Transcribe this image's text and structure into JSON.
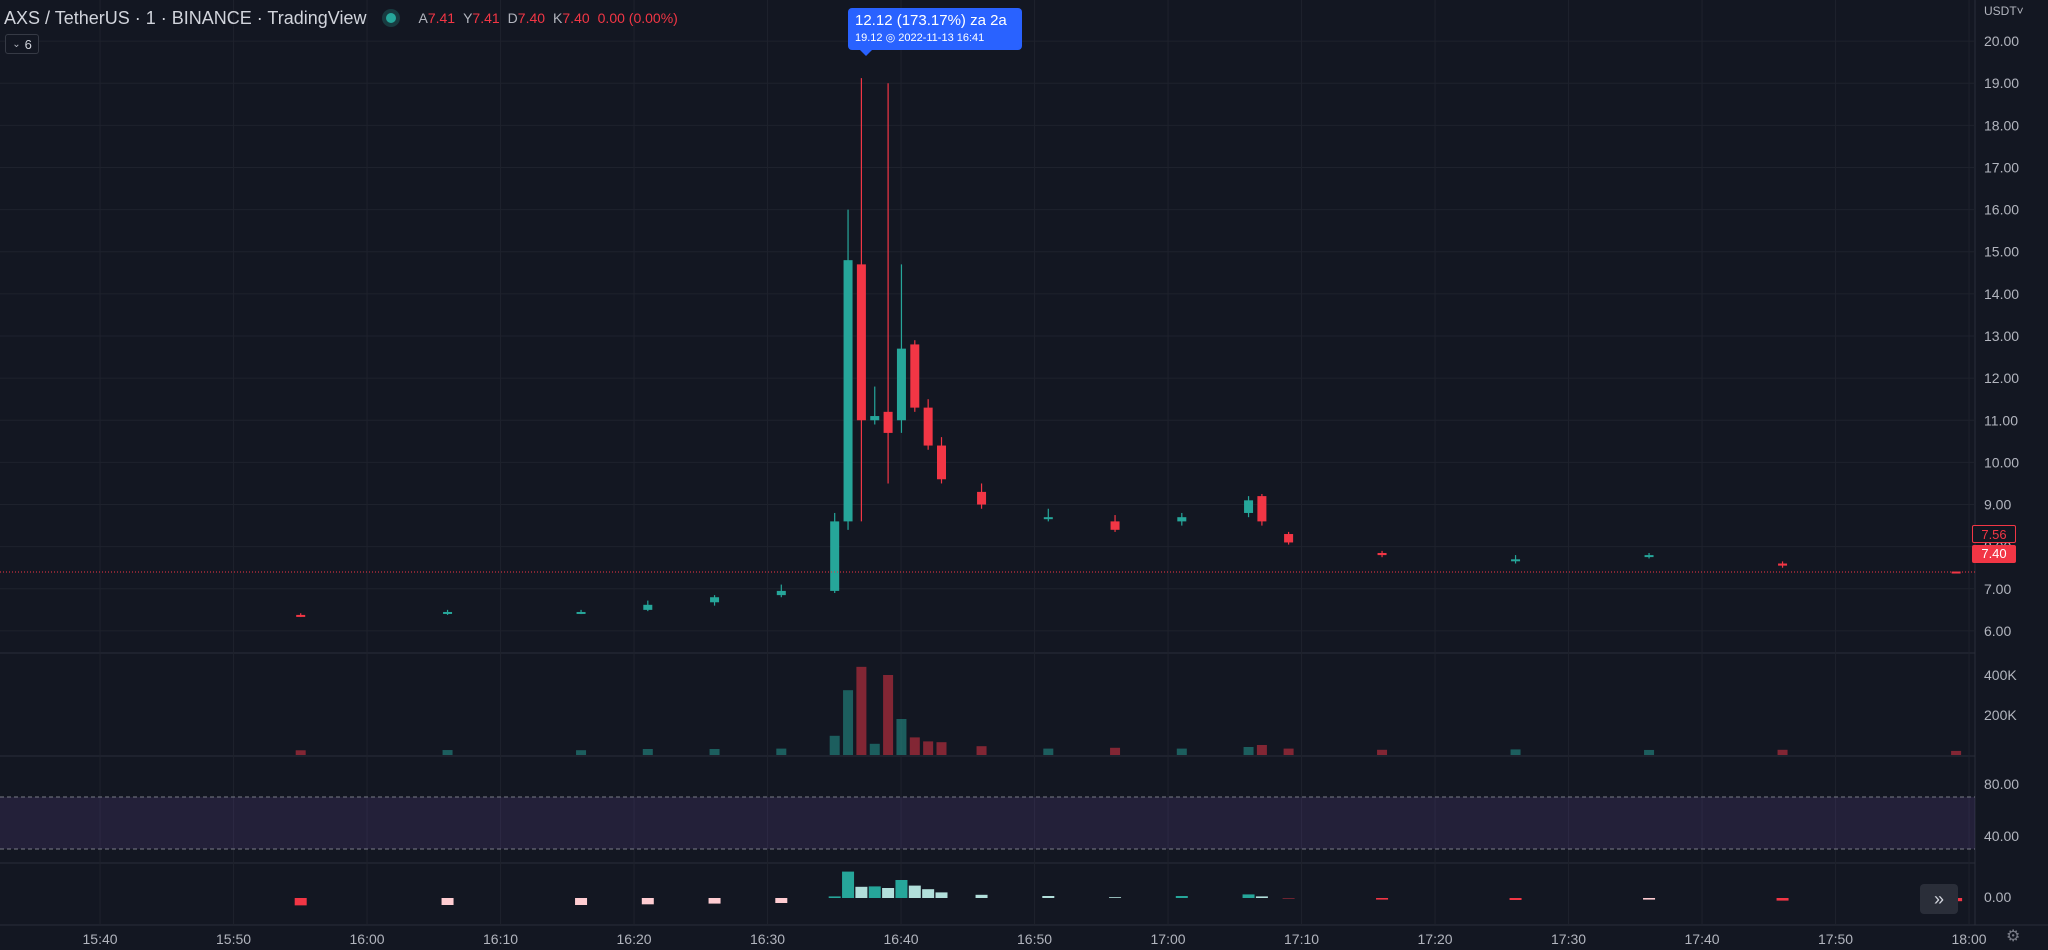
{
  "legend": {
    "symbol": "AXS / TetherUS · 1 · BINANCE · TradingView",
    "ohlc": [
      {
        "key": "A",
        "value": "7.41"
      },
      {
        "key": "Y",
        "value": "7.41"
      },
      {
        "key": "D",
        "value": "7.40"
      },
      {
        "key": "K",
        "value": "7.40"
      },
      {
        "key": "",
        "value": "0.00 (0.00%)"
      }
    ],
    "indicators_count": "6"
  },
  "tooltip": {
    "line1": "12.12 (173.17%) za 2a",
    "line2": "19.12 ◎ 2022-11-13  16:41"
  },
  "price_axis": {
    "currency": "USDT˅",
    "labels": [
      "20.00",
      "19.00",
      "18.00",
      "17.00",
      "16.00",
      "15.00",
      "14.00",
      "13.00",
      "12.00",
      "11.00",
      "10.00",
      "9.00",
      "8.00",
      "7.00",
      "6.00"
    ],
    "last_price": "7.40",
    "prev_tag": "7.56"
  },
  "volume_axis": {
    "labels": [
      "400K",
      "200K"
    ]
  },
  "rsi_axis": {
    "labels": [
      "80.00",
      "40.00"
    ]
  },
  "osc_axis": {
    "labels": [
      "0.00"
    ]
  },
  "time_axis": {
    "labels": [
      "15:40",
      "15:50",
      "16:00",
      "16:10",
      "16:20",
      "16:30",
      "16:40",
      "16:50",
      "17:00",
      "17:10",
      "17:20",
      "17:30",
      "17:40",
      "17:50",
      "18:00"
    ]
  },
  "colors": {
    "up": "#26a69a",
    "down": "#f23645",
    "rsi": "#9c27b0",
    "background": "#131722"
  },
  "icons": {
    "goto_realtime": "double-chevron-right-icon",
    "settings": "gear-icon"
  },
  "chart_data": {
    "type": "candlestick",
    "x_start": "15:37",
    "interval_minutes": 1,
    "price_range": [
      5.5,
      20.5
    ],
    "candles": [
      {
        "t": "15:59",
        "o": 6.38,
        "h": 6.42,
        "l": 6.33,
        "c": 6.36
      },
      {
        "t": "16:10",
        "o": 6.42,
        "h": 6.5,
        "l": 6.38,
        "c": 6.45
      },
      {
        "t": "16:20",
        "o": 6.42,
        "h": 6.5,
        "l": 6.4,
        "c": 6.45
      },
      {
        "t": "16:25",
        "o": 6.5,
        "h": 6.72,
        "l": 6.47,
        "c": 6.62
      },
      {
        "t": "16:30",
        "o": 6.68,
        "h": 6.85,
        "l": 6.6,
        "c": 6.8
      },
      {
        "t": "16:35",
        "o": 6.85,
        "h": 7.1,
        "l": 6.8,
        "c": 6.95
      },
      {
        "t": "16:39",
        "o": 6.95,
        "h": 8.8,
        "l": 6.9,
        "c": 8.6
      },
      {
        "t": "16:40",
        "o": 8.6,
        "h": 16.0,
        "l": 8.4,
        "c": 14.8
      },
      {
        "t": "16:41",
        "o": 14.7,
        "h": 19.12,
        "l": 8.6,
        "c": 11.0
      },
      {
        "t": "16:42",
        "o": 11.0,
        "h": 11.8,
        "l": 10.9,
        "c": 11.1
      },
      {
        "t": "16:43",
        "o": 11.2,
        "h": 19.0,
        "l": 9.5,
        "c": 10.7
      },
      {
        "t": "16:44",
        "o": 11.0,
        "h": 14.7,
        "l": 10.7,
        "c": 12.7
      },
      {
        "t": "16:45",
        "o": 12.8,
        "h": 12.9,
        "l": 11.2,
        "c": 11.3
      },
      {
        "t": "16:46",
        "o": 11.3,
        "h": 11.5,
        "l": 10.3,
        "c": 10.4
      },
      {
        "t": "16:47",
        "o": 10.4,
        "h": 10.6,
        "l": 9.5,
        "c": 9.6
      },
      {
        "t": "16:50",
        "o": 9.3,
        "h": 9.5,
        "l": 8.9,
        "c": 9.0
      },
      {
        "t": "16:55",
        "o": 8.7,
        "h": 8.9,
        "l": 8.6,
        "c": 8.7
      },
      {
        "t": "17:00",
        "o": 8.6,
        "h": 8.75,
        "l": 8.35,
        "c": 8.4
      },
      {
        "t": "17:05",
        "o": 8.6,
        "h": 8.8,
        "l": 8.5,
        "c": 8.7
      },
      {
        "t": "17:10",
        "o": 8.8,
        "h": 9.2,
        "l": 8.7,
        "c": 9.1
      },
      {
        "t": "17:11",
        "o": 9.2,
        "h": 9.25,
        "l": 8.5,
        "c": 8.6
      },
      {
        "t": "17:13",
        "o": 8.3,
        "h": 8.35,
        "l": 8.05,
        "c": 8.1
      },
      {
        "t": "17:20",
        "o": 7.85,
        "h": 7.9,
        "l": 7.75,
        "c": 7.8
      },
      {
        "t": "17:30",
        "o": 7.7,
        "h": 7.8,
        "l": 7.6,
        "c": 7.7
      },
      {
        "t": "17:40",
        "o": 7.8,
        "h": 7.85,
        "l": 7.72,
        "c": 7.8
      },
      {
        "t": "17:50",
        "o": 7.6,
        "h": 7.65,
        "l": 7.5,
        "c": 7.55
      },
      {
        "t": "18:03",
        "o": 7.41,
        "h": 7.41,
        "l": 7.4,
        "c": 7.4
      }
    ],
    "volume_range": [
      0,
      500000
    ],
    "rsi_range": [
      20,
      100
    ],
    "rsi_bands": [
      70,
      30
    ]
  }
}
